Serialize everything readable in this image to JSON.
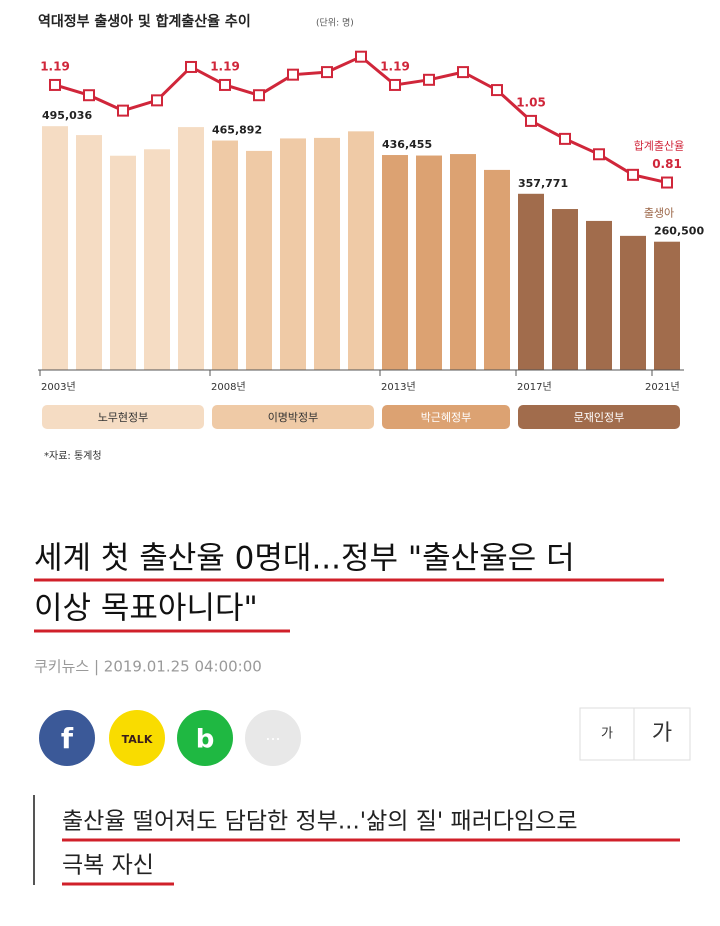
{
  "chart_data": {
    "type": "bar-line",
    "title": "역대정부 출생아 및 합계출산율 추이",
    "unit": "(단위: 명)",
    "categories": [
      "2003년",
      null,
      null,
      null,
      null,
      "2008년",
      null,
      null,
      null,
      null,
      "2013년",
      null,
      null,
      null,
      "2017년",
      null,
      null,
      null,
      "2021년"
    ],
    "series": [
      {
        "name": "출생아",
        "type": "bar",
        "color": "#9a6445",
        "colors": [
          "#f5dcc3",
          "#f5dcc3",
          "#f5dcc3",
          "#f5dcc3",
          "#f5dcc3",
          "#efcaa6",
          "#efcaa6",
          "#efcaa6",
          "#efcaa6",
          "#efcaa6",
          "#dca272",
          "#dca272",
          "#dca272",
          "#dca272",
          "#a16c4c",
          "#a16c4c",
          "#a16c4c",
          "#a16c4c",
          "#a16c4c"
        ],
        "values": [
          495036,
          476958,
          435031,
          448153,
          493189,
          465892,
          444849,
          470171,
          471265,
          484550,
          436455,
          435435,
          438420,
          406243,
          357771,
          326822,
          302676,
          272337,
          260500
        ],
        "value_labels": [
          "495,036",
          null,
          null,
          null,
          null,
          "465,892",
          null,
          null,
          null,
          null,
          "436,455",
          null,
          null,
          null,
          "357,771",
          null,
          null,
          null,
          "260,500"
        ]
      },
      {
        "name": "합계출산율",
        "type": "line",
        "axis": "y2",
        "color": "#d0263a",
        "values": [
          1.19,
          1.15,
          1.09,
          1.13,
          1.26,
          1.19,
          1.15,
          1.23,
          1.24,
          1.3,
          1.19,
          1.21,
          1.24,
          1.17,
          1.05,
          0.98,
          0.92,
          0.84,
          0.81
        ],
        "value_labels": [
          "1.19",
          null,
          null,
          null,
          null,
          "1.19",
          null,
          null,
          null,
          null,
          "1.19",
          null,
          null,
          null,
          "1.05",
          null,
          null,
          null,
          "0.81"
        ]
      }
    ],
    "ylim": [
      0,
      670000
    ],
    "y2lim": [
      0.08,
      1.365
    ],
    "periods": [
      {
        "name": "노무현정부",
        "color": "#f5dcc3",
        "text_color": "#333333"
      },
      {
        "name": "이명박정부",
        "color": "#efcaa6",
        "text_color": "#333333"
      },
      {
        "name": "박근혜정부",
        "color": "#dca272",
        "text_color": "#ffffff"
      },
      {
        "name": "문재인정부",
        "color": "#a16c4c",
        "text_color": "#ffffff"
      }
    ],
    "source": "*자료: 통계청"
  },
  "article": {
    "headline": [
      "세계 첫 출산율 0명대...정부 \"출산율은 더",
      "이상 목표아니다\""
    ],
    "byline": "쿠키뉴스 | 2019.01.25 04:00:00",
    "share": [
      "f",
      "TALK",
      "b",
      "···"
    ],
    "font_buttons": [
      "가",
      "가"
    ],
    "subhead": [
      "출산율 떨어져도 담담한 정부...'삶의 질' 패러다임으로",
      "극복 자신"
    ]
  }
}
